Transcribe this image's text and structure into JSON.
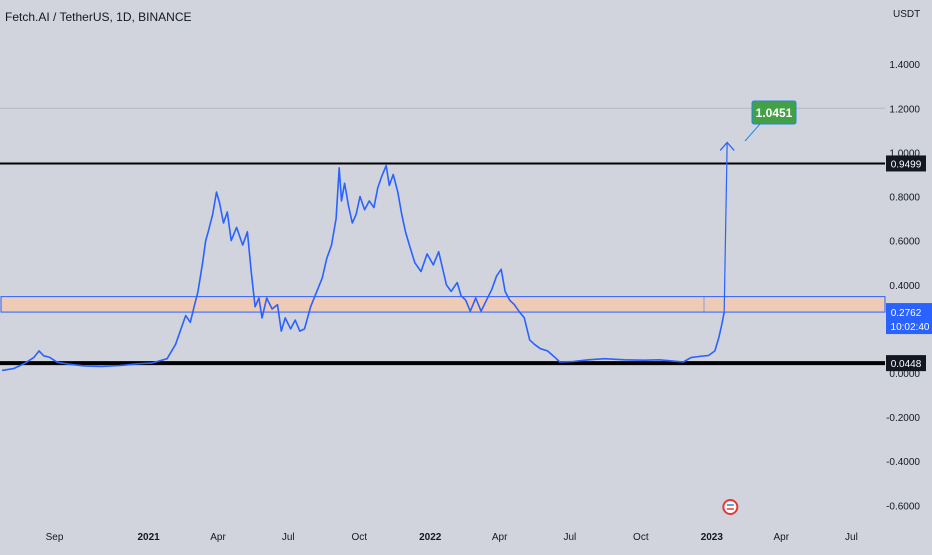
{
  "header": {
    "symbol_title": "Fetch.AI / TetherUS, 1D, BINANCE",
    "axis_unit": "USDT"
  },
  "colors": {
    "background": "#d1d4dc",
    "price_line": "#2962ff",
    "horizontal_level": "#000000",
    "zone_fill": "#f2c9b0",
    "zone_border": "#2962ff",
    "target_badge": "#43a047",
    "target_badge_border": "#1e88e5",
    "last_price_badge": "#2962ff"
  },
  "chart_data": {
    "type": "line",
    "title": "Fetch.AI / TetherUS, 1D, BINANCE",
    "y_unit": "USDT",
    "ylim": [
      -0.6,
      1.6
    ],
    "y_ticks": [
      {
        "label": "1.4000",
        "value": 1.4
      },
      {
        "label": "1.2000",
        "value": 1.2
      },
      {
        "label": "1.0000",
        "value": 1.0
      },
      {
        "label": "0.8000",
        "value": 0.8
      },
      {
        "label": "0.6000",
        "value": 0.6
      },
      {
        "label": "0.4000",
        "value": 0.4
      },
      {
        "label": "0.0000",
        "value": 0.0
      },
      {
        "label": "-0.2000",
        "value": -0.2
      },
      {
        "label": "-0.4000",
        "value": -0.4
      },
      {
        "label": "-0.6000",
        "value": -0.6
      }
    ],
    "x_ticks": [
      {
        "label": "Sep",
        "date": "2020-09-01",
        "bold": false
      },
      {
        "label": "2021",
        "date": "2021-01-01",
        "bold": true
      },
      {
        "label": "Apr",
        "date": "2021-04-01",
        "bold": false
      },
      {
        "label": "Jul",
        "date": "2021-07-01",
        "bold": false
      },
      {
        "label": "Oct",
        "date": "2021-10-01",
        "bold": false
      },
      {
        "label": "2022",
        "date": "2022-01-01",
        "bold": true
      },
      {
        "label": "Apr",
        "date": "2022-04-01",
        "bold": false
      },
      {
        "label": "Jul",
        "date": "2022-07-01",
        "bold": false
      },
      {
        "label": "Oct",
        "date": "2022-10-01",
        "bold": false
      },
      {
        "label": "2023",
        "date": "2023-01-01",
        "bold": true
      },
      {
        "label": "Apr",
        "date": "2023-04-01",
        "bold": false
      },
      {
        "label": "Jul",
        "date": "2023-07-01",
        "bold": false
      }
    ],
    "series": [
      {
        "points": [
          [
            "2020-06-25",
            0.012
          ],
          [
            "2020-07-10",
            0.02
          ],
          [
            "2020-07-25",
            0.045
          ],
          [
            "2020-08-05",
            0.07
          ],
          [
            "2020-08-12",
            0.1
          ],
          [
            "2020-08-18",
            0.078
          ],
          [
            "2020-08-25",
            0.072
          ],
          [
            "2020-09-05",
            0.048
          ],
          [
            "2020-09-20",
            0.04
          ],
          [
            "2020-10-10",
            0.032
          ],
          [
            "2020-11-01",
            0.03
          ],
          [
            "2020-11-25",
            0.034
          ],
          [
            "2020-12-20",
            0.042
          ],
          [
            "2021-01-05",
            0.045
          ],
          [
            "2021-01-25",
            0.065
          ],
          [
            "2021-02-05",
            0.13
          ],
          [
            "2021-02-12",
            0.2
          ],
          [
            "2021-02-18",
            0.26
          ],
          [
            "2021-02-24",
            0.23
          ],
          [
            "2021-03-01",
            0.3
          ],
          [
            "2021-03-06",
            0.37
          ],
          [
            "2021-03-12",
            0.5
          ],
          [
            "2021-03-16",
            0.6
          ],
          [
            "2021-03-20",
            0.65
          ],
          [
            "2021-03-25",
            0.72
          ],
          [
            "2021-03-30",
            0.82
          ],
          [
            "2021-04-03",
            0.77
          ],
          [
            "2021-04-08",
            0.68
          ],
          [
            "2021-04-13",
            0.73
          ],
          [
            "2021-04-18",
            0.6
          ],
          [
            "2021-04-25",
            0.66
          ],
          [
            "2021-05-03",
            0.58
          ],
          [
            "2021-05-09",
            0.64
          ],
          [
            "2021-05-14",
            0.46
          ],
          [
            "2021-05-19",
            0.3
          ],
          [
            "2021-05-24",
            0.34
          ],
          [
            "2021-05-28",
            0.25
          ],
          [
            "2021-06-03",
            0.34
          ],
          [
            "2021-06-10",
            0.29
          ],
          [
            "2021-06-17",
            0.31
          ],
          [
            "2021-06-22",
            0.19
          ],
          [
            "2021-06-27",
            0.25
          ],
          [
            "2021-07-04",
            0.2
          ],
          [
            "2021-07-10",
            0.24
          ],
          [
            "2021-07-16",
            0.19
          ],
          [
            "2021-07-22",
            0.2
          ],
          [
            "2021-07-30",
            0.3
          ],
          [
            "2021-08-07",
            0.37
          ],
          [
            "2021-08-14",
            0.43
          ],
          [
            "2021-08-20",
            0.52
          ],
          [
            "2021-08-26",
            0.58
          ],
          [
            "2021-09-01",
            0.7
          ],
          [
            "2021-09-05",
            0.93
          ],
          [
            "2021-09-08",
            0.78
          ],
          [
            "2021-09-12",
            0.86
          ],
          [
            "2021-09-17",
            0.76
          ],
          [
            "2021-09-22",
            0.68
          ],
          [
            "2021-09-27",
            0.72
          ],
          [
            "2021-10-02",
            0.8
          ],
          [
            "2021-10-08",
            0.74
          ],
          [
            "2021-10-14",
            0.78
          ],
          [
            "2021-10-20",
            0.75
          ],
          [
            "2021-10-25",
            0.84
          ],
          [
            "2021-10-30",
            0.89
          ],
          [
            "2021-11-05",
            0.94
          ],
          [
            "2021-11-09",
            0.85
          ],
          [
            "2021-11-14",
            0.9
          ],
          [
            "2021-11-20",
            0.82
          ],
          [
            "2021-11-25",
            0.72
          ],
          [
            "2021-11-30",
            0.64
          ],
          [
            "2021-12-05",
            0.58
          ],
          [
            "2021-12-12",
            0.5
          ],
          [
            "2021-12-20",
            0.46
          ],
          [
            "2021-12-28",
            0.54
          ],
          [
            "2022-01-05",
            0.49
          ],
          [
            "2022-01-12",
            0.55
          ],
          [
            "2022-01-18",
            0.46
          ],
          [
            "2022-01-22",
            0.4
          ],
          [
            "2022-01-28",
            0.37
          ],
          [
            "2022-02-05",
            0.41
          ],
          [
            "2022-02-10",
            0.35
          ],
          [
            "2022-02-16",
            0.33
          ],
          [
            "2022-02-22",
            0.28
          ],
          [
            "2022-03-01",
            0.34
          ],
          [
            "2022-03-08",
            0.28
          ],
          [
            "2022-03-15",
            0.33
          ],
          [
            "2022-03-22",
            0.38
          ],
          [
            "2022-03-28",
            0.44
          ],
          [
            "2022-04-03",
            0.47
          ],
          [
            "2022-04-08",
            0.37
          ],
          [
            "2022-04-14",
            0.33
          ],
          [
            "2022-04-20",
            0.31
          ],
          [
            "2022-04-26",
            0.28
          ],
          [
            "2022-05-03",
            0.25
          ],
          [
            "2022-05-10",
            0.15
          ],
          [
            "2022-05-16",
            0.13
          ],
          [
            "2022-05-24",
            0.11
          ],
          [
            "2022-06-02",
            0.1
          ],
          [
            "2022-06-12",
            0.07
          ],
          [
            "2022-06-18",
            0.05
          ],
          [
            "2022-07-05",
            0.052
          ],
          [
            "2022-07-25",
            0.06
          ],
          [
            "2022-08-15",
            0.065
          ],
          [
            "2022-09-10",
            0.06
          ],
          [
            "2022-10-05",
            0.058
          ],
          [
            "2022-10-25",
            0.06
          ],
          [
            "2022-11-10",
            0.055
          ],
          [
            "2022-11-25",
            0.05
          ],
          [
            "2022-12-05",
            0.07
          ],
          [
            "2022-12-15",
            0.075
          ],
          [
            "2022-12-28",
            0.08
          ],
          [
            "2023-01-05",
            0.1
          ],
          [
            "2023-01-10",
            0.16
          ],
          [
            "2023-01-14",
            0.22
          ],
          [
            "2023-01-17",
            0.2762
          ]
        ]
      }
    ],
    "horizontal_levels": [
      {
        "value": 0.9499,
        "label": "0.9499"
      },
      {
        "value": 0.0448,
        "label": "0.0448"
      }
    ],
    "reference_line": {
      "value": 1.2
    },
    "zone": {
      "low": 0.2762,
      "high": 0.3462,
      "start": "2020-06-25",
      "end": "2023-08-30"
    },
    "projection": {
      "from_date": "2023-01-17",
      "from_value": 0.2762,
      "to_value": 1.0451
    },
    "target": {
      "label": "1.0451",
      "value": 1.0451
    },
    "last_price": {
      "label": "0.2762",
      "countdown": "10:02:40",
      "value": 0.2762
    },
    "earnings_marker": {
      "date": "2023-01-25",
      "label": "E"
    }
  }
}
